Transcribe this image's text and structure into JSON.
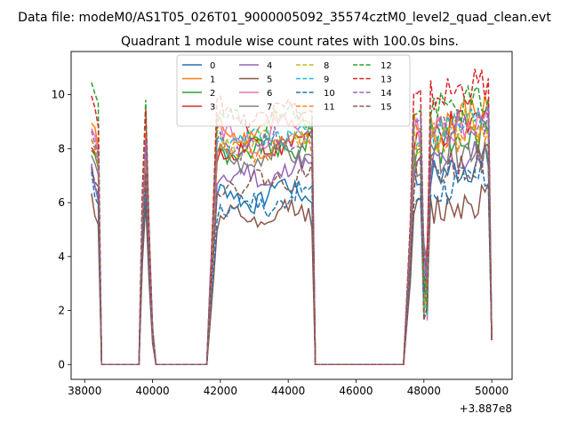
{
  "chart_data": {
    "type": "line",
    "suptitle": "Data file: modeM0/AS1T05_026T01_9000005092_35574cztM0_level2_quad_clean.evt",
    "title": "Quadrant 1 module wise count rates with 100.0s bins.",
    "xlabel": "",
    "ylabel": "",
    "x_offset_label": "+3.887e8",
    "xlim": [
      37600,
      50600
    ],
    "ylim": [
      -0.55,
      11.6
    ],
    "xticks": [
      38000,
      40000,
      42000,
      44000,
      46000,
      48000,
      50000
    ],
    "xtick_labels": [
      "38000",
      "40000",
      "42000",
      "44000",
      "46000",
      "48000",
      "50000"
    ],
    "yticks": [
      0,
      2,
      4,
      6,
      8,
      10
    ],
    "ytick_labels": [
      "0",
      "2",
      "4",
      "6",
      "8",
      "10"
    ],
    "legend_location": "upper center",
    "legend_ncol": 4,
    "segments": [
      {
        "x_start": 38200,
        "x_end": 38400,
        "plateau": true
      },
      {
        "x_start": 38500,
        "x_end": 39600,
        "plateau": false
      },
      {
        "x_start": 39700,
        "x_end": 40000,
        "spike": true
      },
      {
        "x_start": 40100,
        "x_end": 41600,
        "plateau": false
      },
      {
        "x_start": 41700,
        "x_end": 44700,
        "plateau": true
      },
      {
        "x_start": 44800,
        "x_end": 47400,
        "plateau": false
      },
      {
        "x_start": 47500,
        "x_end": 50000,
        "plateau": true
      }
    ],
    "series": [
      {
        "name": "0",
        "color": "#1f77b4",
        "dash": "solid",
        "level1": 7.3,
        "level2": 6.2,
        "level3": 7.0
      },
      {
        "name": "1",
        "color": "#ff7f0e",
        "dash": "solid",
        "level1": 9.0,
        "level2": 8.7,
        "level3": 8.9
      },
      {
        "name": "2",
        "color": "#2ca02c",
        "dash": "solid",
        "level1": 8.1,
        "level2": 7.8,
        "level3": 8.0
      },
      {
        "name": "3",
        "color": "#d62728",
        "dash": "solid",
        "level1": 8.3,
        "level2": 8.0,
        "level3": 8.5
      },
      {
        "name": "4",
        "color": "#9467bd",
        "dash": "solid",
        "level1": 7.2,
        "level2": 6.9,
        "level3": 7.3
      },
      {
        "name": "5",
        "color": "#8c564b",
        "dash": "solid",
        "level1": 6.2,
        "level2": 5.3,
        "level3": 5.7
      },
      {
        "name": "6",
        "color": "#e377c2",
        "dash": "solid",
        "level1": 8.7,
        "level2": 8.4,
        "level3": 8.6
      },
      {
        "name": "7",
        "color": "#7f7f7f",
        "dash": "solid",
        "level1": 7.8,
        "level2": 7.6,
        "level3": 7.7
      },
      {
        "name": "8",
        "color": "#bcbd22",
        "dash": "dashed",
        "level1": 8.5,
        "level2": 8.2,
        "level3": 8.4
      },
      {
        "name": "9",
        "color": "#17becf",
        "dash": "dashed",
        "level1": 8.6,
        "level2": 8.3,
        "level3": 8.6
      },
      {
        "name": "10",
        "color": "#1f77b4",
        "dash": "dashed",
        "level1": 6.9,
        "level2": 5.9,
        "level3": 6.4
      },
      {
        "name": "11",
        "color": "#ff7f0e",
        "dash": "dashed",
        "level1": 8.2,
        "level2": 7.9,
        "level3": 8.2
      },
      {
        "name": "12",
        "color": "#2ca02c",
        "dash": "dashed",
        "level1": 10.4,
        "level2": 8.9,
        "level3": 9.3
      },
      {
        "name": "13",
        "color": "#d62728",
        "dash": "dashed",
        "level1": 10.0,
        "level2": 9.3,
        "level3": 9.9
      },
      {
        "name": "14",
        "color": "#9467bd",
        "dash": "dashed",
        "level1": 8.8,
        "level2": 8.1,
        "level3": 8.7
      },
      {
        "name": "15",
        "color": "#8c564b",
        "dash": "dashed",
        "level1": 7.5,
        "level2": 6.7,
        "level3": 7.1
      }
    ]
  }
}
